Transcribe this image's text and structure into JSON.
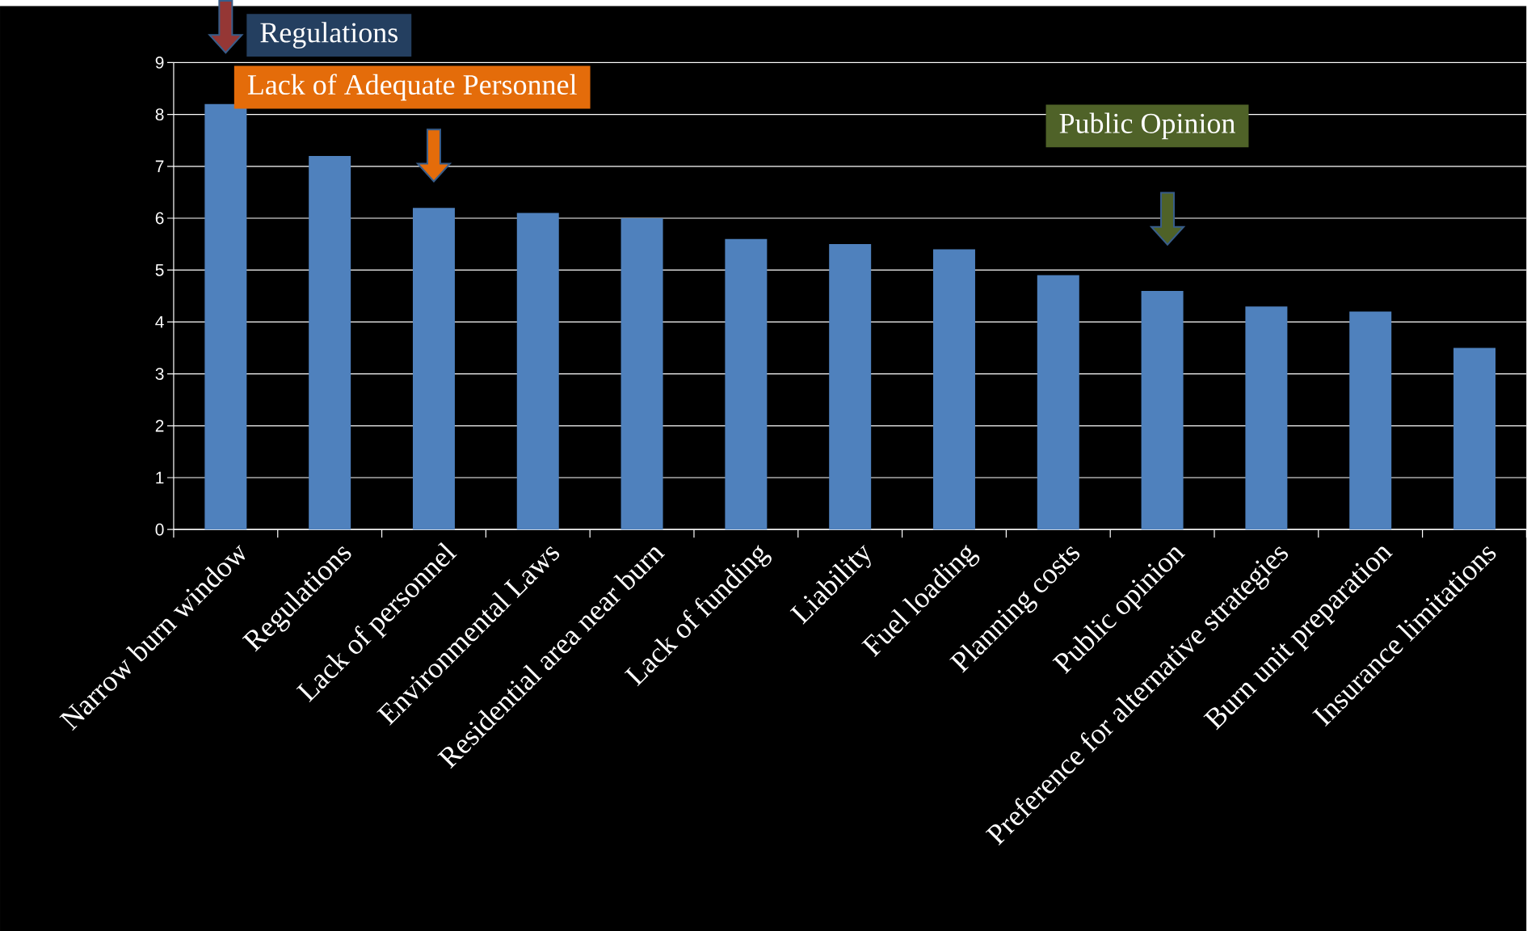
{
  "chart_data": {
    "type": "bar",
    "categories": [
      "Narrow burn window",
      "Regulations",
      "Lack of personnel",
      "Environmental Laws",
      "Residential area near burn",
      "Lack of funding",
      "Liability",
      "Fuel loading",
      "Planning costs",
      "Public opinion",
      "Preference for alternative strategies",
      "Burn unit preparation",
      "Insurance limitations"
    ],
    "values": [
      8.2,
      7.2,
      6.2,
      6.1,
      6.0,
      5.6,
      5.5,
      5.4,
      4.9,
      4.6,
      4.3,
      4.2,
      3.5
    ],
    "color": "#4f81bd",
    "ylim": [
      0,
      9
    ],
    "yticks": [
      0,
      1,
      2,
      3,
      4,
      5,
      6,
      7,
      8,
      9
    ],
    "grid": "y",
    "annotations": [
      "Regulations",
      "Lack of Adequate Personnel",
      "Public Opinion"
    ]
  }
}
